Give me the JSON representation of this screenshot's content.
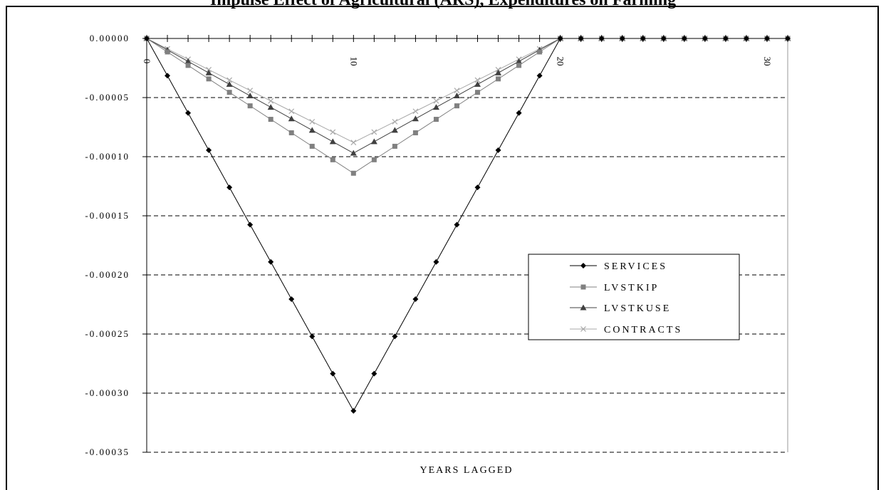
{
  "chart_data": {
    "type": "line",
    "title": "Impulse Effect of Agricultural (ARS), Expenditures on Farming",
    "xlabel": "YEARS LAGGED",
    "ylabel": "",
    "x": [
      0,
      1,
      2,
      3,
      4,
      5,
      6,
      7,
      8,
      9,
      10,
      11,
      12,
      13,
      14,
      15,
      16,
      17,
      18,
      19,
      20,
      21,
      22,
      23,
      24,
      25,
      26,
      27,
      28,
      29,
      30,
      31
    ],
    "x_tick_labels": [
      "0",
      "10",
      "20",
      "30"
    ],
    "x_ticks": [
      0,
      10,
      20,
      30
    ],
    "xlim": [
      0,
      31
    ],
    "y_tick_labels": [
      "0.00000",
      "-0.00005",
      "-0.00010",
      "-0.00015",
      "-0.00020",
      "-0.00025",
      "-0.00030",
      "-0.00035"
    ],
    "y_ticks": [
      0,
      -5e-05,
      -0.0001,
      -0.00015,
      -0.0002,
      -0.00025,
      -0.0003,
      -0.00035
    ],
    "ylim": [
      -0.00035,
      0
    ],
    "grid": "horizontal-dashed",
    "legend_position": "right",
    "series": [
      {
        "name": "SERVICES",
        "marker": "diamond",
        "color": "#000000",
        "values": [
          0,
          -3.15e-05,
          -6.3e-05,
          -9.45e-05,
          -0.000126,
          -0.0001575,
          -0.000189,
          -0.0002205,
          -0.000252,
          -0.0002835,
          -0.000315,
          -0.0002835,
          -0.000252,
          -0.0002205,
          -0.000189,
          -0.0001575,
          -0.000126,
          -9.45e-05,
          -6.3e-05,
          -3.15e-05,
          0,
          0,
          0,
          0,
          0,
          0,
          0,
          0,
          0,
          0,
          0,
          0
        ]
      },
      {
        "name": "LVSTKIP",
        "marker": "square",
        "color": "#808080",
        "values": [
          0,
          -1.14e-05,
          -2.28e-05,
          -3.42e-05,
          -4.56e-05,
          -5.7e-05,
          -6.84e-05,
          -7.98e-05,
          -9.12e-05,
          -0.0001026,
          -0.000114,
          -0.0001026,
          -9.12e-05,
          -7.98e-05,
          -6.84e-05,
          -5.7e-05,
          -4.56e-05,
          -3.42e-05,
          -2.28e-05,
          -1.14e-05,
          0,
          0,
          0,
          0,
          0,
          0,
          0,
          0,
          0,
          0,
          0,
          0
        ]
      },
      {
        "name": "LVSTKUSE",
        "marker": "triangle",
        "color": "#404040",
        "values": [
          0,
          -9.7e-06,
          -1.94e-05,
          -2.91e-05,
          -3.88e-05,
          -4.85e-05,
          -5.82e-05,
          -6.79e-05,
          -7.76e-05,
          -8.73e-05,
          -9.7e-05,
          -8.73e-05,
          -7.76e-05,
          -6.79e-05,
          -5.82e-05,
          -4.85e-05,
          -3.88e-05,
          -2.91e-05,
          -1.94e-05,
          -9.7e-06,
          0,
          0,
          0,
          0,
          0,
          0,
          0,
          0,
          0,
          0,
          0,
          0
        ]
      },
      {
        "name": "CONTRACTS",
        "marker": "x",
        "color": "#a8a8a8",
        "values": [
          0,
          -8.8e-06,
          -1.76e-05,
          -2.64e-05,
          -3.52e-05,
          -4.4e-05,
          -5.28e-05,
          -6.16e-05,
          -7.04e-05,
          -7.92e-05,
          -8.8e-05,
          -7.92e-05,
          -7.04e-05,
          -6.16e-05,
          -5.28e-05,
          -4.4e-05,
          -3.52e-05,
          -2.64e-05,
          -1.76e-05,
          -8.8e-06,
          0,
          0,
          0,
          0,
          0,
          0,
          0,
          0,
          0,
          0,
          0,
          0
        ]
      }
    ]
  }
}
